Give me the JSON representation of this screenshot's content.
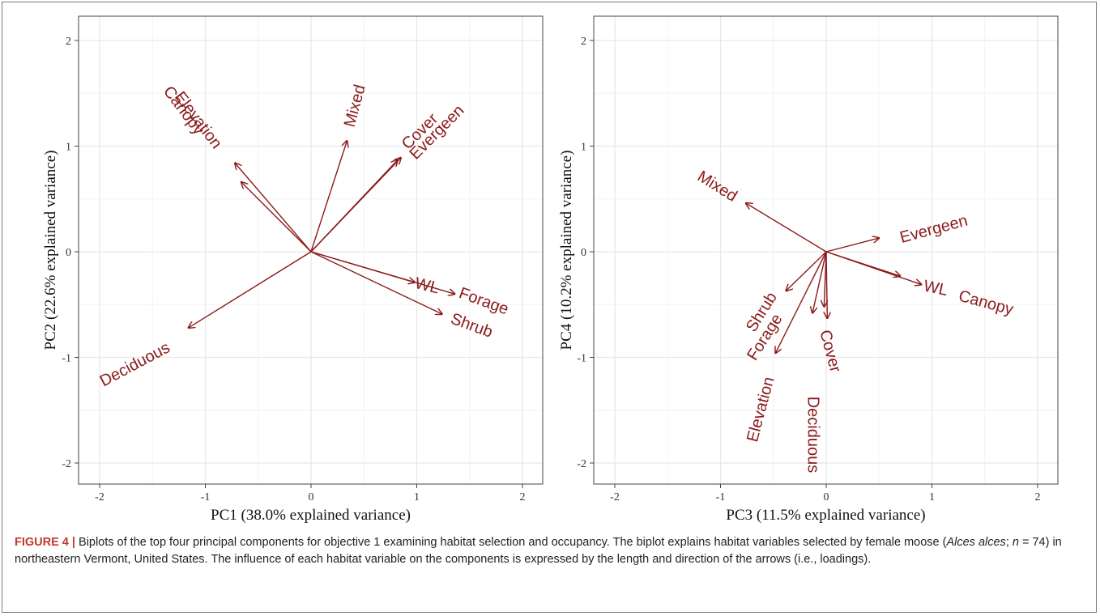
{
  "colors": {
    "arrow": "#8b1a1a",
    "grid_major": "#e8e8e8",
    "grid_minor": "#f3f3f3",
    "figure_label": "#c0392b"
  },
  "chart_data": [
    {
      "type": "scatter",
      "subtype": "biplot",
      "xlabel": "PC1 (38.0% explained variance)",
      "ylabel": "PC2 (22.6% explained variance)",
      "xlim": [
        -2.2,
        2.2
      ],
      "ylim": [
        -2.2,
        2.2
      ],
      "xticks": [
        -2,
        -1,
        0,
        1,
        2
      ],
      "yticks": [
        -2,
        -1,
        0,
        1,
        2
      ],
      "grid": true,
      "series": [
        {
          "name": "Canopy",
          "x": -0.72,
          "y": 0.84
        },
        {
          "name": "Elevation",
          "x": -0.66,
          "y": 0.66
        },
        {
          "name": "Mixed",
          "x": 0.34,
          "y": 1.05
        },
        {
          "name": "Cover",
          "x": 0.82,
          "y": 0.87
        },
        {
          "name": "Evergeen",
          "x": 0.85,
          "y": 0.89
        },
        {
          "name": "WL",
          "x": 0.98,
          "y": -0.29
        },
        {
          "name": "Forage",
          "x": 1.36,
          "y": -0.4
        },
        {
          "name": "Shrub",
          "x": 1.24,
          "y": -0.59
        },
        {
          "name": "Deciduous",
          "x": -1.16,
          "y": -0.72
        }
      ]
    },
    {
      "type": "scatter",
      "subtype": "biplot",
      "xlabel": "PC3 (11.5% explained variance)",
      "ylabel": "PC4 (10.2% explained variance)",
      "xlim": [
        -2.2,
        2.2
      ],
      "ylim": [
        -2.2,
        2.2
      ],
      "xticks": [
        -2,
        -1,
        0,
        1,
        2
      ],
      "yticks": [
        -2,
        -1,
        0,
        1,
        2
      ],
      "grid": true,
      "series": [
        {
          "name": "Mixed",
          "x": -0.76,
          "y": 0.46
        },
        {
          "name": "Evergeen",
          "x": 0.5,
          "y": 0.13
        },
        {
          "name": "WL",
          "x": 0.7,
          "y": -0.23
        },
        {
          "name": "Canopy",
          "x": 0.9,
          "y": -0.31
        },
        {
          "name": "Shrub",
          "x": -0.38,
          "y": -0.37
        },
        {
          "name": "Forage",
          "x": -0.48,
          "y": -0.96
        },
        {
          "name": "Cover",
          "x": 0.01,
          "y": -0.63
        },
        {
          "name": "Elevation",
          "x": -0.13,
          "y": -0.58
        },
        {
          "name": "Deciduous",
          "x": -0.02,
          "y": -0.52
        }
      ]
    }
  ],
  "caption": {
    "figure_label": "FIGURE 4 |",
    "text_1": " Biplots of the top four principal components for objective 1 examining habitat selection and occupancy. The biplot explains habitat variables selected by female moose (",
    "species": "Alces alces",
    "text_2": "; ",
    "n_symbol": "n",
    "text_3": " = 74) in northeastern Vermont, United States. The influence of each habitat variable on the components is expressed by the length and direction of the arrows (i.e., loadings)."
  }
}
